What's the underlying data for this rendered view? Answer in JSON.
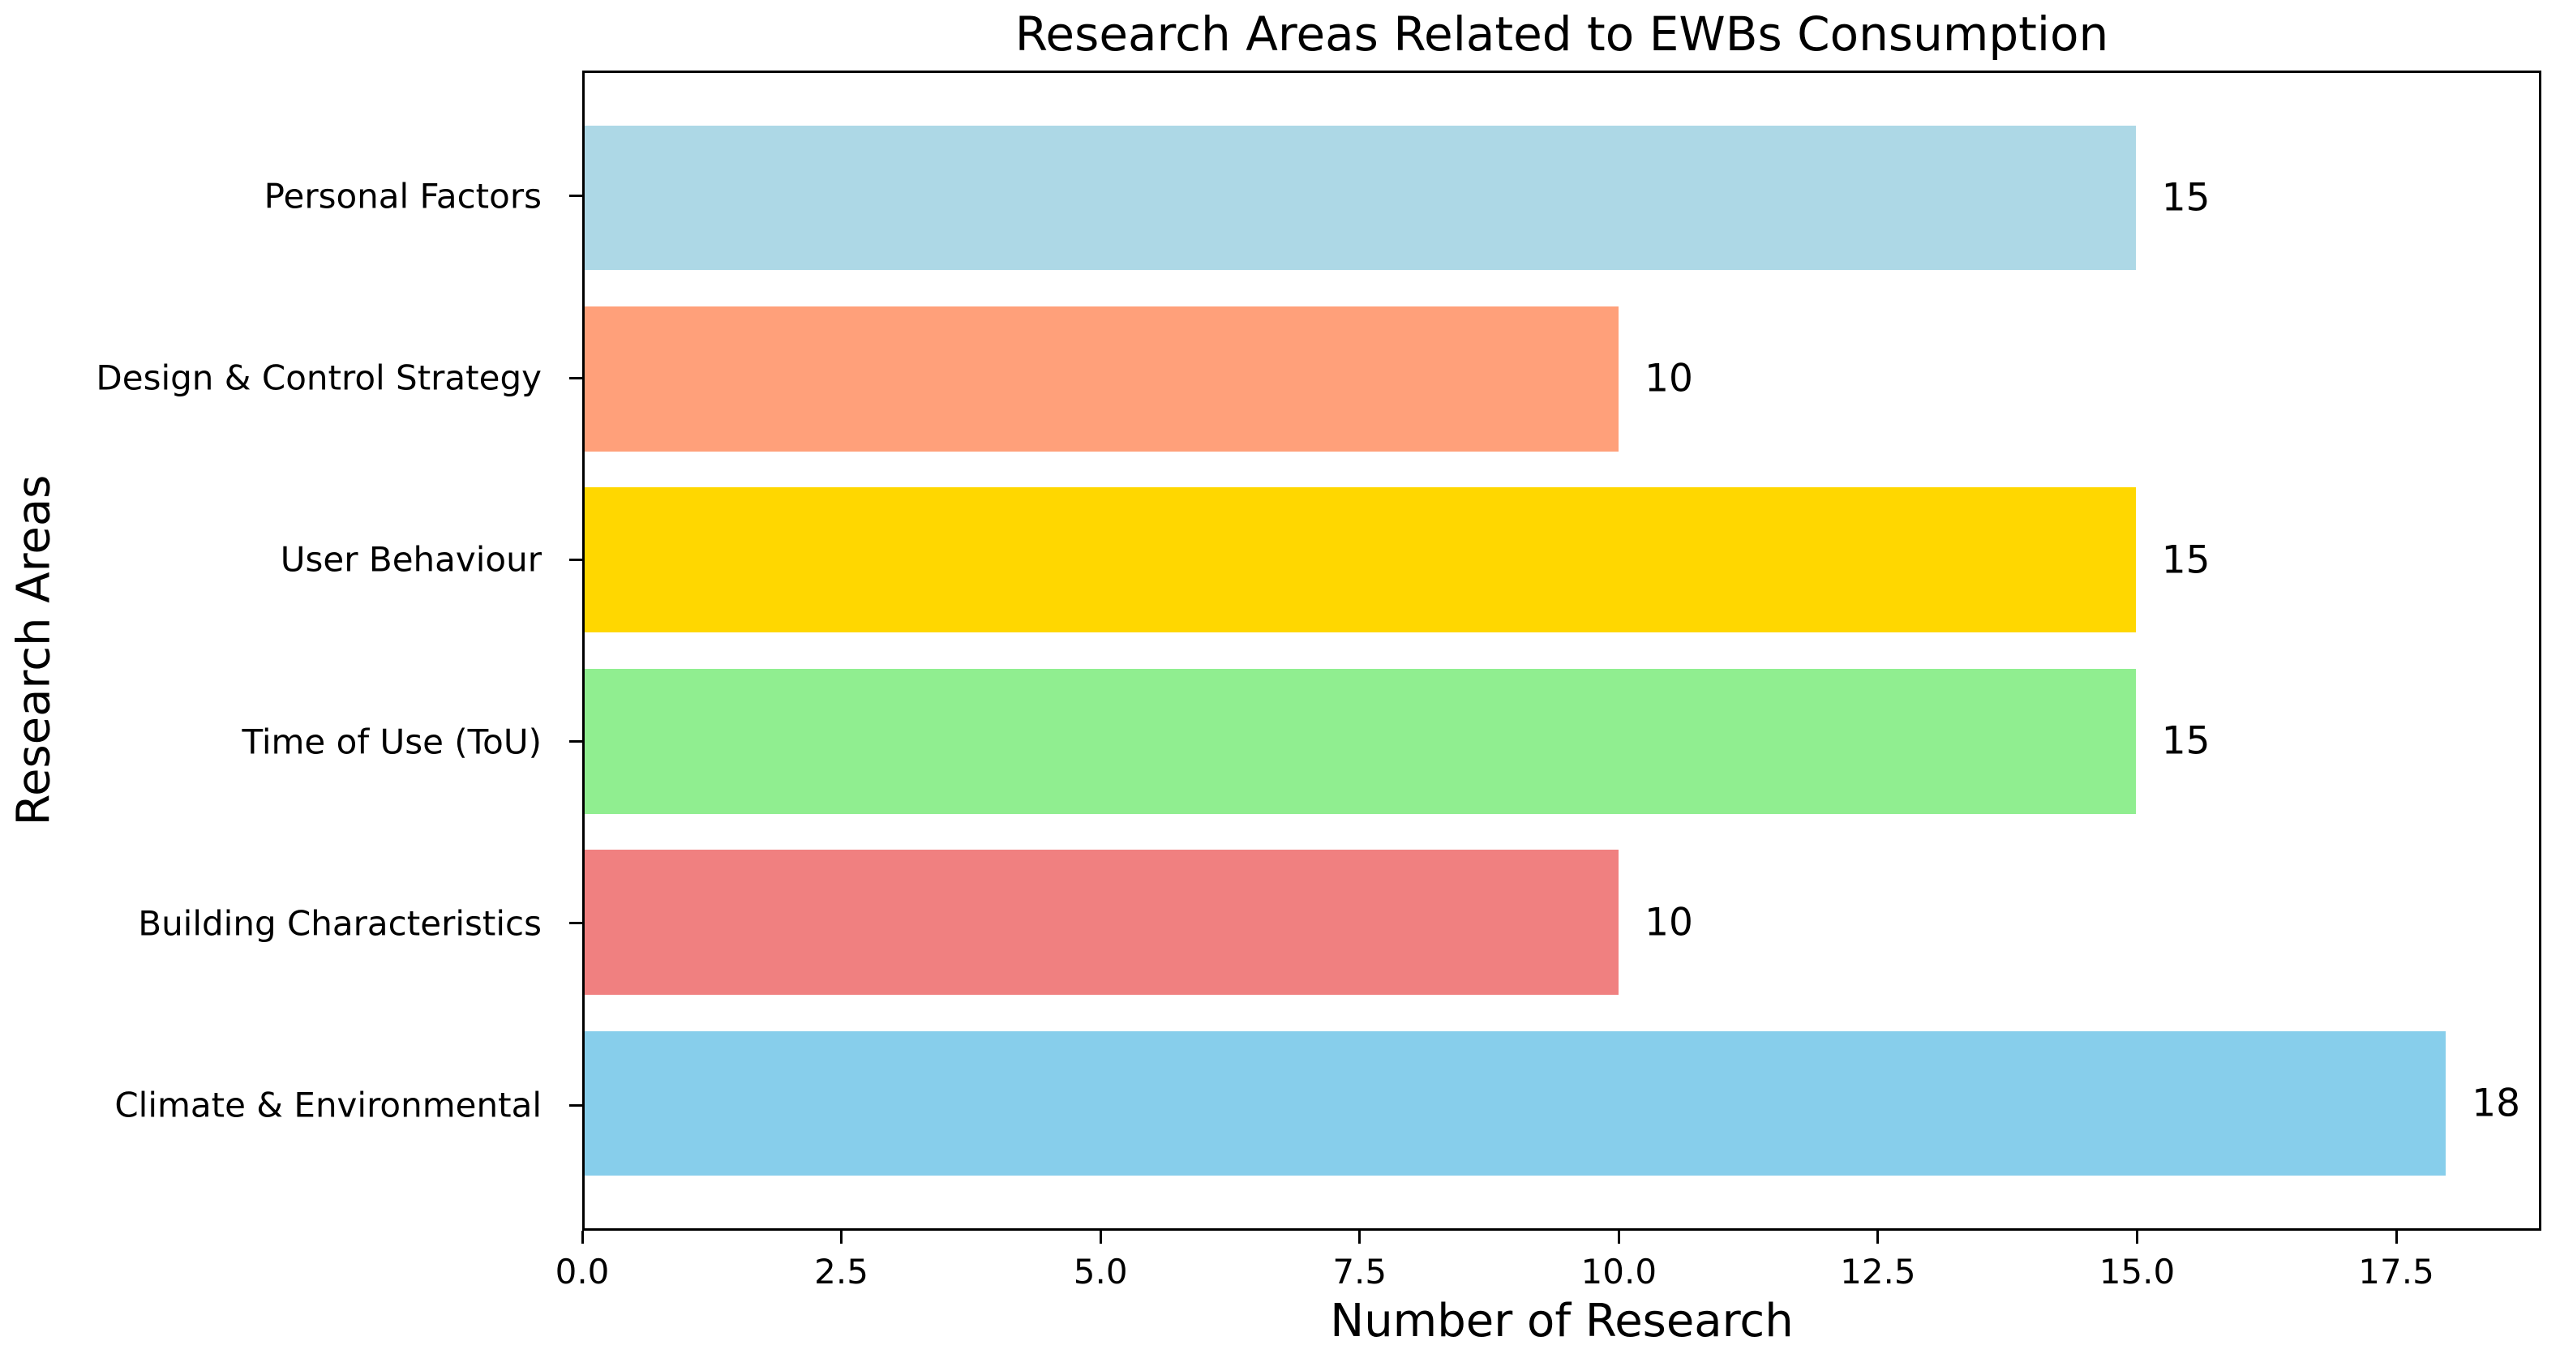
{
  "chart_data": {
    "type": "bar",
    "orientation": "horizontal",
    "title": "Research Areas Related to EWBs Consumption",
    "xlabel": "Number of Research",
    "ylabel": "Research Areas",
    "categories": [
      "Personal Factors",
      "Design & Control Strategy",
      "User Behaviour",
      "Time of Use (ToU)",
      "Building Characteristics",
      "Climate & Environmental"
    ],
    "values": [
      15,
      10,
      15,
      15,
      10,
      18
    ],
    "value_labels": [
      "15",
      "10",
      "15",
      "15",
      "10",
      "18"
    ],
    "bar_colors": [
      "#ADD8E6",
      "#FFA07A",
      "#FFD700",
      "#90EE90",
      "#F08080",
      "#87CEEB"
    ],
    "x_ticks": [
      0,
      2.5,
      5,
      7.5,
      10,
      12.5,
      15,
      17.5
    ],
    "x_tick_labels": [
      "0.0",
      "2.5",
      "5.0",
      "7.5",
      "10.0",
      "12.5",
      "15.0",
      "17.5"
    ],
    "xlim": [
      0,
      18.9
    ],
    "ylim": [
      -0.69,
      5.69
    ],
    "bar_height": 0.8,
    "grid": false,
    "legend": null,
    "background_color": "#FFFFFF",
    "axis_color": "#000000",
    "text_color": "#000000"
  }
}
